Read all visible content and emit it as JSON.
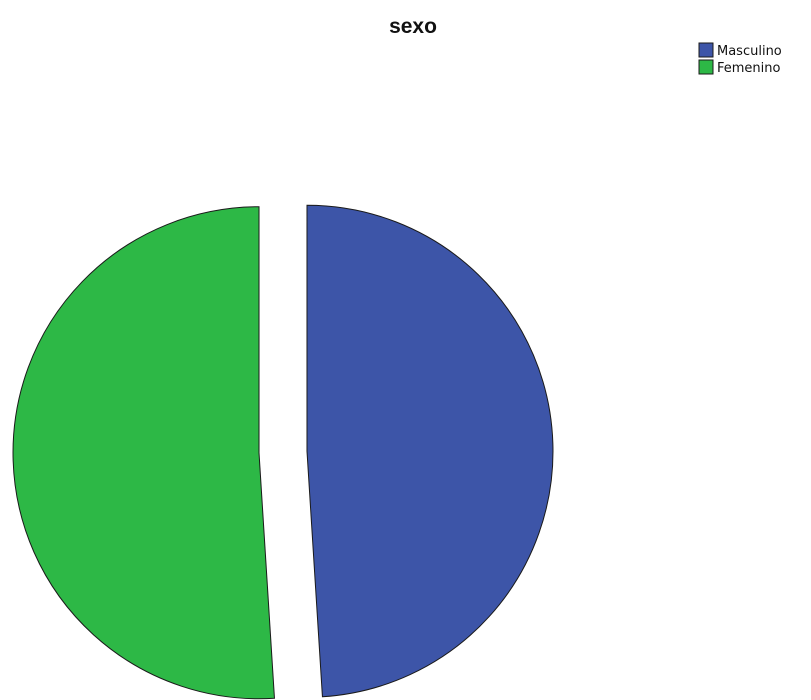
{
  "chart_data": {
    "type": "pie",
    "title": "sexo",
    "legend_position": "top-right",
    "series": [
      {
        "name": "Masculino",
        "value": 49,
        "color": "#3d55a8"
      },
      {
        "name": "Femenino",
        "value": 51,
        "color": "#2db846"
      }
    ],
    "exploded": true
  }
}
